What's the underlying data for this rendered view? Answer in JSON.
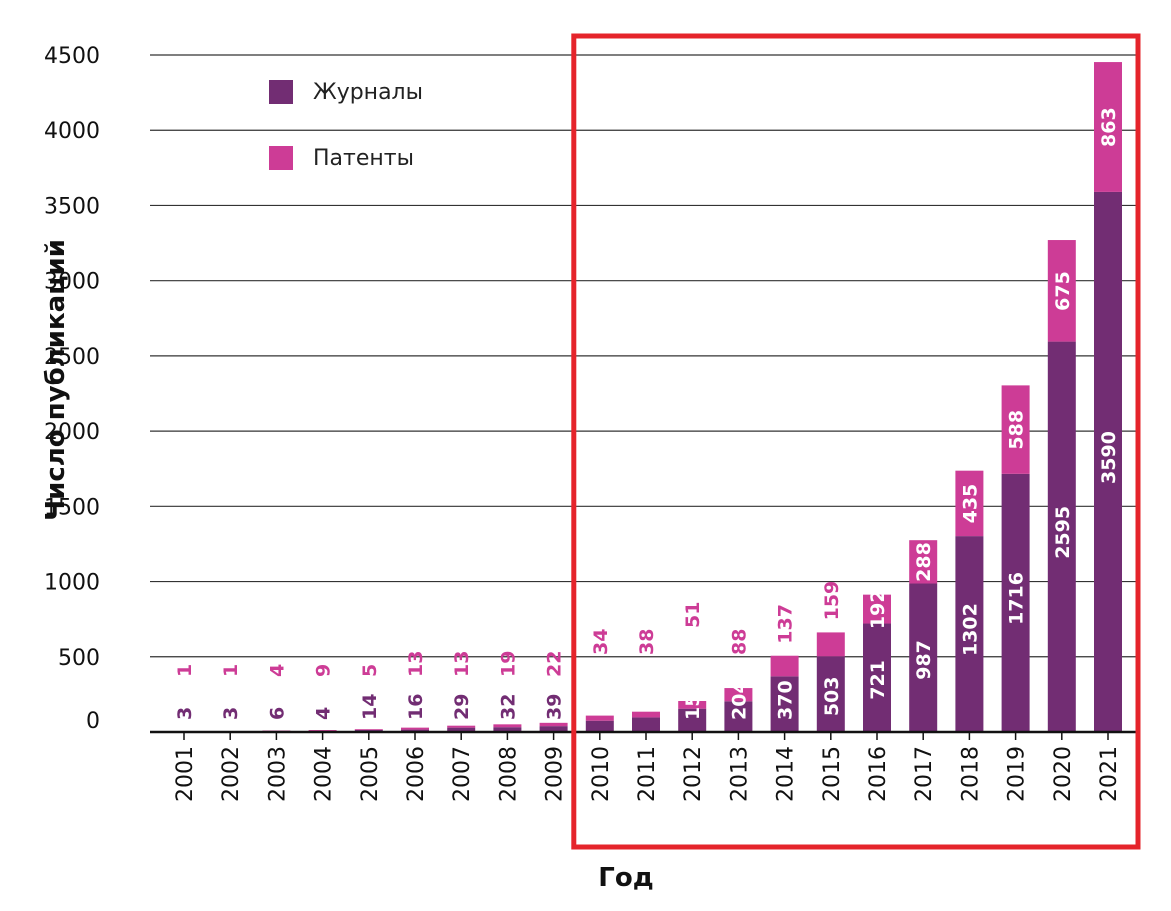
{
  "chart_data": {
    "type": "bar",
    "stacked": true,
    "title": "",
    "xlabel": "Год",
    "ylabel": "Число публикаций",
    "ylim": [
      0,
      4500
    ],
    "yticks": [
      0,
      500,
      1000,
      1500,
      2000,
      2500,
      3000,
      3500,
      4000,
      4500
    ],
    "grid": true,
    "legend_position": "top-left",
    "categories": [
      "2001",
      "2002",
      "2003",
      "2004",
      "2005",
      "2006",
      "2007",
      "2008",
      "2009",
      "2010",
      "2011",
      "2012",
      "2013",
      "2014",
      "2015",
      "2016",
      "2017",
      "2018",
      "2019",
      "2020",
      "2021"
    ],
    "series": [
      {
        "name": "Журналы",
        "color": "#722D73",
        "values": [
          3,
          3,
          6,
          4,
          14,
          16,
          29,
          32,
          39,
          75,
          97,
          155,
          204,
          370,
          503,
          721,
          987,
          1302,
          1716,
          2595,
          3590
        ]
      },
      {
        "name": "Патенты",
        "color": "#CD3C96",
        "values": [
          1,
          1,
          4,
          9,
          5,
          13,
          13,
          19,
          22,
          34,
          38,
          51,
          88,
          137,
          159,
          192,
          288,
          435,
          588,
          675,
          863
        ]
      }
    ],
    "highlight": {
      "from": "2010",
      "to": "2021",
      "color": "#E5242B"
    }
  }
}
